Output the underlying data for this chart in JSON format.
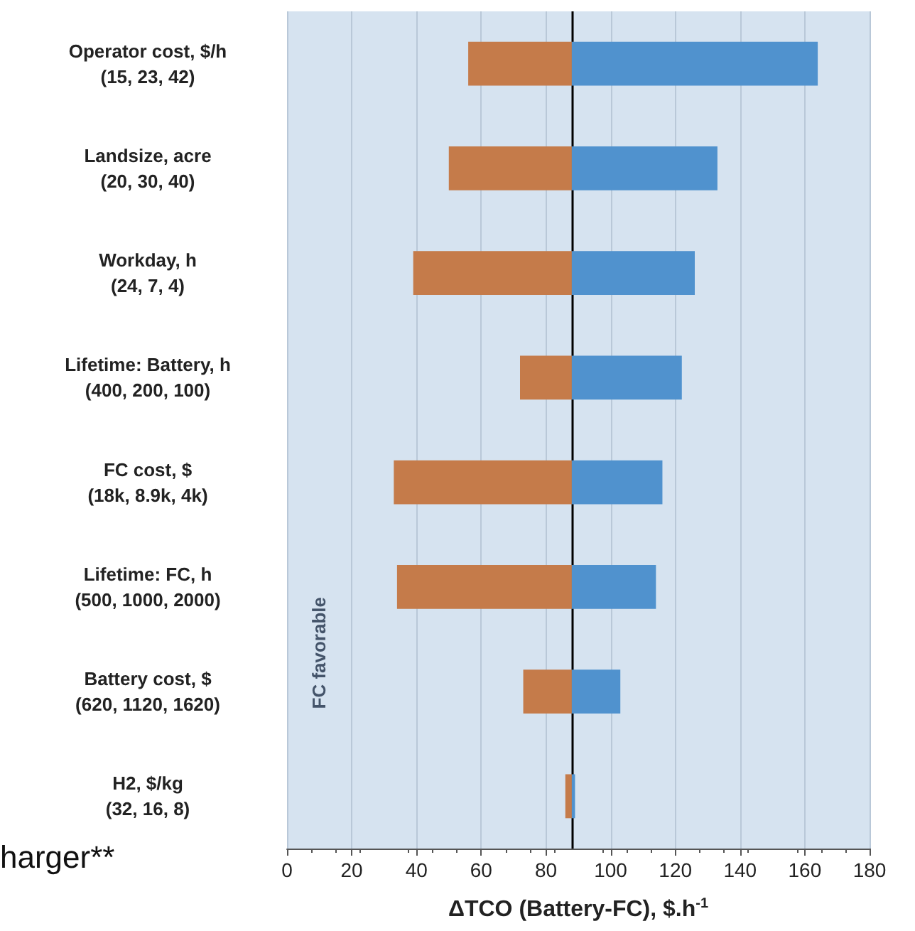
{
  "chart_data": {
    "type": "bar",
    "orientation": "horizontal",
    "categories": [
      "Operator cost, $/h\n(15, 23, 42)",
      "Landsize, acre\n(20, 30, 40)",
      "Workday, h\n(24, 7, 4)",
      "Lifetime: Battery, h\n(400, 200, 100)",
      "FC cost, $\n(18k, 8.9k, 4k)",
      "Lifetime: FC, h\n(500, 1000, 2000)",
      "Battery cost, $\n(620, 1120, 1620)",
      "H2, $/kg\n(32, 16, 8)"
    ],
    "series": [
      {
        "color": "#c57b4a",
        "base": [
          56,
          50,
          39,
          72,
          33,
          34,
          73,
          86
        ],
        "values": [
          32,
          38,
          49,
          16,
          55,
          54,
          15,
          2
        ]
      },
      {
        "color": "#5092ce",
        "base": [
          88,
          88,
          88,
          88,
          88,
          88,
          88,
          88
        ],
        "values": [
          76,
          45,
          38,
          34,
          28,
          26,
          15,
          1
        ]
      }
    ],
    "xlabel": "ΔTCO (Battery-FC), $.h$^{-1}$",
    "xlim": [
      0,
      180
    ],
    "xticks": [
      0,
      20,
      40,
      60,
      80,
      100,
      120,
      140,
      160,
      180
    ],
    "ref_lines": [
      {
        "axis": "x",
        "value": 88,
        "color": "#000000"
      }
    ],
    "annotations": [
      "FC favorable",
      "harger**"
    ],
    "grid": "x"
  }
}
